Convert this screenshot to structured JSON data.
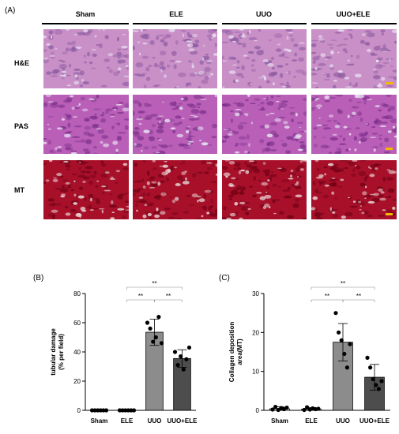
{
  "figure": {
    "panels": {
      "a": "(A)",
      "b": "(B)",
      "c": "(C)"
    },
    "columns": [
      "Sham",
      "ELE",
      "UUO",
      "UUO+ELE"
    ],
    "rows": [
      "H&E",
      "PAS",
      "MT"
    ],
    "colors": {
      "he": "#c98fc7",
      "pas": "#b95fb8",
      "mt": "#a8102a",
      "scale_bar": "#f5b800"
    }
  },
  "chart_data": [
    {
      "type": "bar",
      "panel": "(B)",
      "categories": [
        "Sham",
        "ELE",
        "UUO",
        "UUO+ELE"
      ],
      "values": [
        0,
        0,
        53.5,
        35.5
      ],
      "errors": [
        0,
        0,
        9,
        6
      ],
      "points": [
        [
          0,
          0,
          0,
          0,
          0,
          0
        ],
        [
          0,
          0,
          0,
          0,
          0,
          0
        ],
        [
          60,
          56,
          47,
          50,
          64,
          46
        ],
        [
          40,
          31,
          37,
          28,
          35,
          43
        ]
      ],
      "ylabel_lines": [
        "tubular damage",
        "(% per field)"
      ],
      "yticks": [
        0,
        20,
        40,
        60,
        80
      ],
      "ylim": [
        0,
        80
      ],
      "bar_colors": [
        "#ffffff",
        "#ffffff",
        "#8c8c8c",
        "#4d4d4d"
      ],
      "significance": [
        {
          "from": 1,
          "to": 2,
          "label": "**"
        },
        {
          "from": 2,
          "to": 3,
          "label": "**"
        },
        {
          "from": 1,
          "to": 3,
          "label": "**"
        }
      ]
    },
    {
      "type": "bar",
      "panel": "(C)",
      "categories": [
        "Sham",
        "ELE",
        "UUO",
        "UUO+ELE"
      ],
      "values": [
        0.4,
        0.3,
        17.5,
        8.5
      ],
      "errors": [
        0.5,
        0.4,
        4.8,
        3.3
      ],
      "points": [
        [
          0.2,
          0.9,
          0.1,
          0.6,
          0.3,
          0.7
        ],
        [
          0.1,
          0.8,
          0.2,
          0.5,
          0.3,
          0.4
        ],
        [
          25,
          20,
          18,
          14.5,
          11,
          17
        ],
        [
          13.5,
          11,
          8,
          6.5,
          5.5,
          7.5
        ]
      ],
      "ylabel_lines": [
        "Collagen deposition",
        "area(MT)"
      ],
      "yticks": [
        0,
        10,
        20,
        30
      ],
      "ylim": [
        0,
        30
      ],
      "bar_colors": [
        "#ffffff",
        "#ffffff",
        "#8c8c8c",
        "#4d4d4d"
      ],
      "significance": [
        {
          "from": 1,
          "to": 2,
          "label": "**"
        },
        {
          "from": 2,
          "to": 3,
          "label": "**"
        },
        {
          "from": 1,
          "to": 3,
          "label": "**"
        }
      ]
    }
  ]
}
